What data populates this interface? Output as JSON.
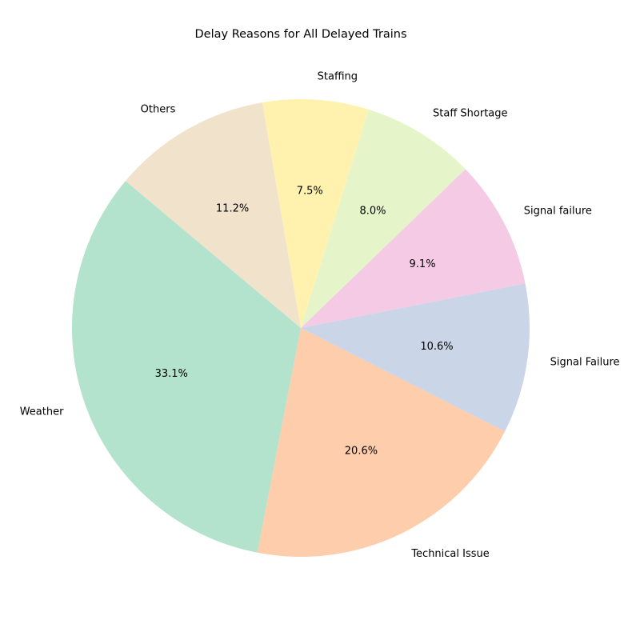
{
  "chart_data": {
    "type": "pie",
    "title": "Delay Reasons for All Delayed Trains",
    "categories": [
      "Weather",
      "Technical Issue",
      "Signal Failure",
      "Signal failure",
      "Staff Shortage",
      "Staffing",
      "Others"
    ],
    "values": [
      33.1,
      20.6,
      10.6,
      9.1,
      8.0,
      7.5,
      11.2
    ],
    "value_labels": [
      "33.1%",
      "20.6%",
      "10.6%",
      "9.1%",
      "8.0%",
      "7.5%",
      "11.2%"
    ],
    "colors": [
      "#b3e2cd",
      "#fdcdac",
      "#cbd5e8",
      "#f4cae4",
      "#e6f5c9",
      "#fff2ae",
      "#f1e2cc"
    ],
    "start_angle_deg": 140,
    "direction": "counterclockwise",
    "legend": "none"
  }
}
